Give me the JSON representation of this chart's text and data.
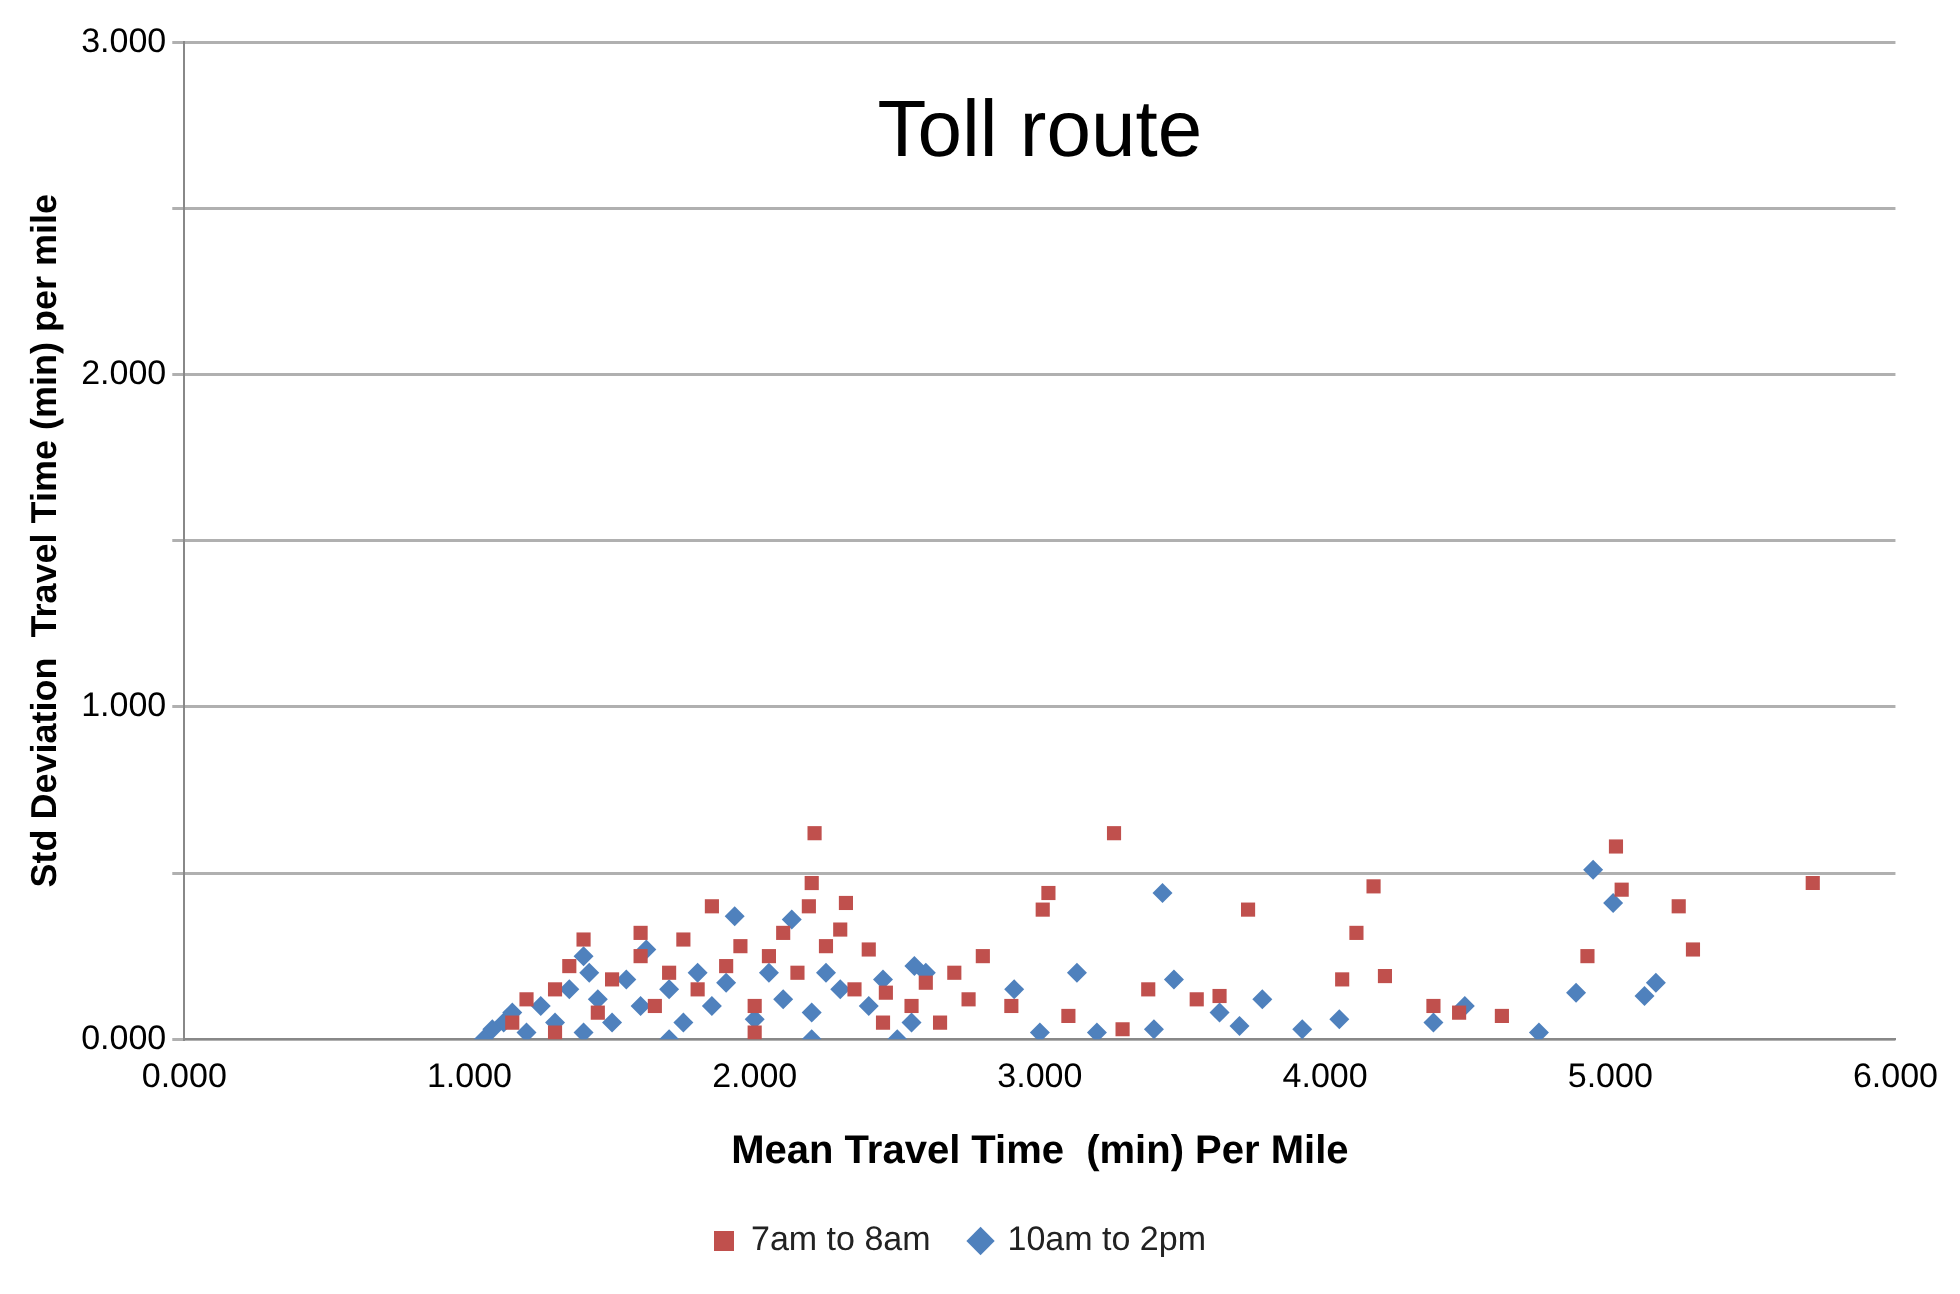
{
  "chart_data": {
    "type": "scatter",
    "title": "Toll route",
    "xlabel": "Mean Travel Time  (min) Per Mile",
    "ylabel": "Std Deviation  Travel Time (min) per mile",
    "legend": "bottom",
    "grid": "y",
    "xlim": [
      0,
      6
    ],
    "ylim": [
      0,
      3
    ],
    "xticks": [
      {
        "value": 0,
        "label": "0.000"
      },
      {
        "value": 1,
        "label": "1.000"
      },
      {
        "value": 2,
        "label": "2.000"
      },
      {
        "value": 3,
        "label": "3.000"
      },
      {
        "value": 4,
        "label": "4.000"
      },
      {
        "value": 5,
        "label": "5.000"
      },
      {
        "value": 6,
        "label": "6.000"
      }
    ],
    "yticks": [
      {
        "value": 0,
        "label": "0.000"
      },
      {
        "value": 0.5,
        "label": null
      },
      {
        "value": 1,
        "label": "1.000"
      },
      {
        "value": 1.5,
        "label": null
      },
      {
        "value": 2,
        "label": "2.000"
      },
      {
        "value": 2.5,
        "label": null
      },
      {
        "value": 3,
        "label": "3.000"
      }
    ],
    "series": [
      {
        "name": "7am to 8am",
        "color": "#c0504d",
        "marker": "square",
        "x": [
          2.21,
          3.26,
          2.2,
          2.19,
          2.32,
          1.85,
          1.4,
          3.03,
          3.01,
          3.73,
          4.17,
          4.11,
          5.02,
          5.04,
          5.24,
          5.71,
          5.29,
          4.92,
          4.21,
          4.06,
          3.63,
          2.7,
          2.8,
          2.46,
          4.38,
          4.47,
          4.62,
          3.55,
          3.38,
          3.29,
          2.9,
          3.1,
          1.15,
          1.2,
          1.3,
          1.35,
          1.45,
          1.5,
          1.6,
          1.65,
          1.7,
          1.75,
          1.8,
          1.9,
          1.95,
          2.0,
          2.05,
          2.1,
          2.15,
          2.25,
          2.3,
          2.35,
          2.4,
          2.45,
          2.55,
          2.6,
          2.65,
          2.75,
          1.6,
          2.0,
          1.3
        ],
        "values": [
          0.62,
          0.62,
          0.47,
          0.4,
          0.41,
          0.4,
          0.3,
          0.44,
          0.39,
          0.39,
          0.46,
          0.32,
          0.58,
          0.45,
          0.4,
          0.47,
          0.27,
          0.25,
          0.19,
          0.18,
          0.13,
          0.2,
          0.25,
          0.14,
          0.1,
          0.08,
          0.07,
          0.12,
          0.15,
          0.03,
          0.1,
          0.07,
          0.05,
          0.12,
          0.15,
          0.22,
          0.08,
          0.18,
          0.25,
          0.1,
          0.2,
          0.3,
          0.15,
          0.22,
          0.28,
          0.1,
          0.25,
          0.32,
          0.2,
          0.28,
          0.33,
          0.15,
          0.27,
          0.05,
          0.1,
          0.17,
          0.05,
          0.12,
          0.32,
          0.02,
          0.02
        ]
      },
      {
        "name": "10am to 2pm",
        "color": "#4f81bd",
        "marker": "diamond",
        "x": [
          3.43,
          4.94,
          5.01,
          1.93,
          2.13,
          2.56,
          2.91,
          3.13,
          3.47,
          3.78,
          4.05,
          3.92,
          4.38,
          4.49,
          4.88,
          5.12,
          5.16,
          4.75,
          3.7,
          3.63,
          3.0,
          3.2,
          2.5,
          3.4,
          1.05,
          1.08,
          1.12,
          1.15,
          1.2,
          1.25,
          1.3,
          1.35,
          1.4,
          1.42,
          1.45,
          1.5,
          1.55,
          1.6,
          1.62,
          1.7,
          1.75,
          1.8,
          1.85,
          1.9,
          2.0,
          2.05,
          2.1,
          2.2,
          2.25,
          2.3,
          2.4,
          2.45,
          2.55,
          2.6,
          1.4,
          1.7,
          2.2
        ],
        "values": [
          0.44,
          0.51,
          0.41,
          0.37,
          0.36,
          0.22,
          0.15,
          0.2,
          0.18,
          0.12,
          0.06,
          0.03,
          0.05,
          0.1,
          0.14,
          0.13,
          0.17,
          0.02,
          0.04,
          0.08,
          0.02,
          0.02,
          0.0,
          0.03,
          0.0,
          0.03,
          0.05,
          0.08,
          0.02,
          0.1,
          0.05,
          0.15,
          0.25,
          0.2,
          0.12,
          0.05,
          0.18,
          0.1,
          0.27,
          0.15,
          0.05,
          0.2,
          0.1,
          0.17,
          0.06,
          0.2,
          0.12,
          0.08,
          0.2,
          0.15,
          0.1,
          0.18,
          0.05,
          0.2,
          0.02,
          0.0,
          0.0
        ]
      }
    ]
  }
}
